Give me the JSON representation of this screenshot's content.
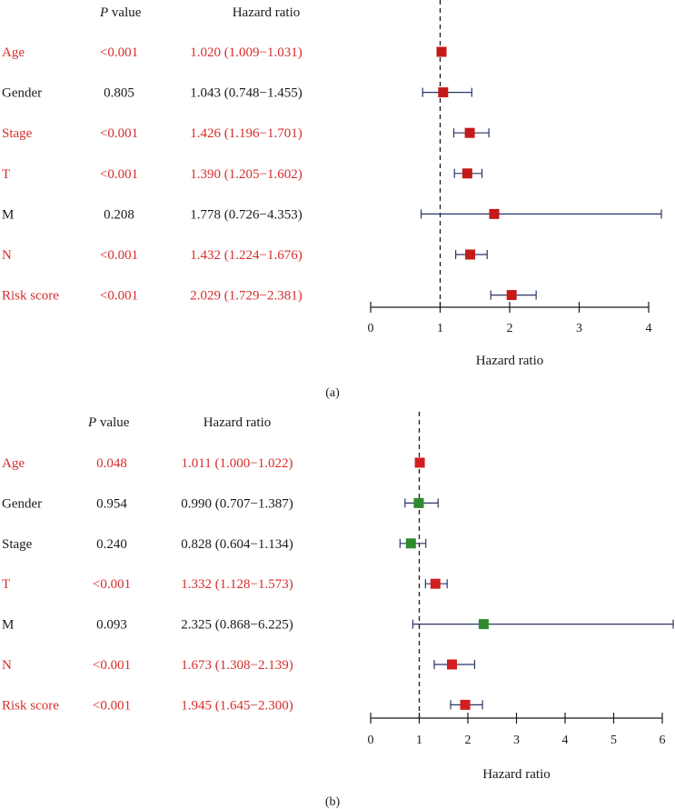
{
  "chart_data": [
    {
      "type": "forest",
      "panel_label": "(a)",
      "pvalue_header_italic": "P",
      "pvalue_header_rest": " value",
      "hr_header": "Hazard ratio",
      "xlabel": "Hazard ratio",
      "xlim": [
        0,
        4
      ],
      "x_ticks": [
        "0",
        "1",
        "2",
        "3",
        "4"
      ],
      "reference_line": 1,
      "rows": [
        {
          "label": "Age",
          "pvalue": "<0.001",
          "hr_text": "1.020 (1.009−1.031)",
          "hr": 1.02,
          "lower": 1.009,
          "upper": 1.031,
          "significant": true
        },
        {
          "label": "Gender",
          "pvalue": "0.805",
          "hr_text": "1.043 (0.748−1.455)",
          "hr": 1.043,
          "lower": 0.748,
          "upper": 1.455,
          "significant": false
        },
        {
          "label": "Stage",
          "pvalue": "<0.001",
          "hr_text": "1.426 (1.196−1.701)",
          "hr": 1.426,
          "lower": 1.196,
          "upper": 1.701,
          "significant": true
        },
        {
          "label": "T",
          "pvalue": "<0.001",
          "hr_text": "1.390 (1.205−1.602)",
          "hr": 1.39,
          "lower": 1.205,
          "upper": 1.602,
          "significant": true
        },
        {
          "label": "M",
          "pvalue": "0.208",
          "hr_text": "1.778 (0.726−4.353)",
          "hr": 1.778,
          "lower": 0.726,
          "upper": 4.353,
          "significant": false
        },
        {
          "label": "N",
          "pvalue": "<0.001",
          "hr_text": "1.432 (1.224−1.676)",
          "hr": 1.432,
          "lower": 1.224,
          "upper": 1.676,
          "significant": true
        },
        {
          "label": "Risk score",
          "pvalue": "<0.001",
          "hr_text": "2.029 (1.729−2.381)",
          "hr": 2.029,
          "lower": 1.729,
          "upper": 2.381,
          "significant": true
        }
      ]
    },
    {
      "type": "forest",
      "panel_label": "(b)",
      "pvalue_header_italic": "P",
      "pvalue_header_rest": " value",
      "hr_header": "Hazard ratio",
      "xlabel": "Hazard ratio",
      "xlim": [
        0,
        6
      ],
      "x_ticks": [
        "0",
        "1",
        "2",
        "3",
        "4",
        "5",
        "6"
      ],
      "reference_line": 1,
      "rows": [
        {
          "label": "Age",
          "pvalue": "0.048",
          "hr_text": "1.011 (1.000−1.022)",
          "hr": 1.011,
          "lower": 1.0,
          "upper": 1.022,
          "significant": true
        },
        {
          "label": "Gender",
          "pvalue": "0.954",
          "hr_text": "0.990 (0.707−1.387)",
          "hr": 0.99,
          "lower": 0.707,
          "upper": 1.387,
          "significant": false
        },
        {
          "label": "Stage",
          "pvalue": "0.240",
          "hr_text": "0.828 (0.604−1.134)",
          "hr": 0.828,
          "lower": 0.604,
          "upper": 1.134,
          "significant": false
        },
        {
          "label": "T",
          "pvalue": "<0.001",
          "hr_text": "1.332 (1.128−1.573)",
          "hr": 1.332,
          "lower": 1.128,
          "upper": 1.573,
          "significant": true
        },
        {
          "label": "M",
          "pvalue": "0.093",
          "hr_text": "2.325 (0.868−6.225)",
          "hr": 2.325,
          "lower": 0.868,
          "upper": 6.225,
          "significant": false
        },
        {
          "label": "N",
          "pvalue": "<0.001",
          "hr_text": "1.673 (1.308−2.139)",
          "hr": 1.673,
          "lower": 1.308,
          "upper": 2.139,
          "significant": true
        },
        {
          "label": "Risk score",
          "pvalue": "<0.001",
          "hr_text": "1.945 (1.645−2.300)",
          "hr": 1.945,
          "lower": 1.645,
          "upper": 2.3,
          "significant": true
        }
      ]
    }
  ],
  "colors": {
    "significant_text": "#d72c2c",
    "normal_text": "#1a1a1a",
    "box_panel_a": "#c41a1a",
    "box_sig_panel_b": "#d21e1e",
    "box_nonsig_panel_b": "#2e8b2e",
    "whisker": "#2b3566",
    "axis": "#1a1a1a"
  }
}
